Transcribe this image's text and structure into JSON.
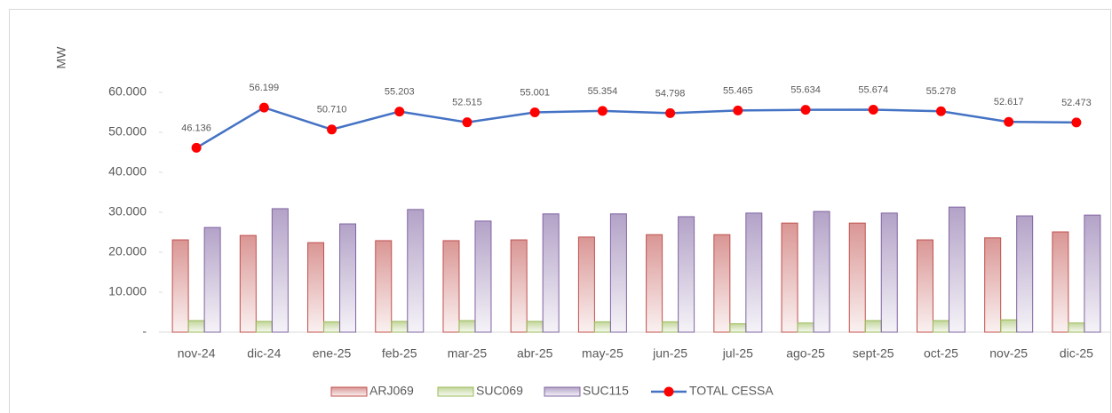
{
  "chart_data": {
    "type": "bar-line",
    "y_label": "MW",
    "categories": [
      "nov-24",
      "dic-24",
      "ene-25",
      "feb-25",
      "mar-25",
      "abr-25",
      "may-25",
      "jun-25",
      "jul-25",
      "ago-25",
      "sept-25",
      "oct-25",
      "nov-25",
      "dic-25"
    ],
    "series": [
      {
        "name": "ARJ069",
        "type": "bar",
        "color": "#c0504d",
        "values": [
          23.1,
          24.2,
          22.4,
          22.9,
          22.9,
          23.1,
          23.8,
          24.4,
          24.4,
          27.3,
          27.3,
          23.1,
          23.6,
          25.1
        ]
      },
      {
        "name": "SUC069",
        "type": "bar",
        "color": "#9bbb59",
        "values": [
          2.9,
          2.7,
          2.6,
          2.7,
          2.9,
          2.7,
          2.6,
          2.6,
          2.1,
          2.3,
          2.9,
          2.9,
          3.1,
          2.3
        ]
      },
      {
        "name": "SUC115",
        "type": "bar",
        "color": "#8064a2",
        "values": [
          26.2,
          30.9,
          27.1,
          30.7,
          27.8,
          29.6,
          29.6,
          28.9,
          29.8,
          30.2,
          29.8,
          31.3,
          29.1,
          29.3
        ]
      },
      {
        "name": "TOTAL CESSA",
        "type": "line",
        "color": "#4472c4",
        "marker_color": "#ff0000",
        "values": [
          46.136,
          56.199,
          50.71,
          55.203,
          52.515,
          55.001,
          55.354,
          54.798,
          55.465,
          55.634,
          55.674,
          55.278,
          52.617,
          52.473
        ],
        "value_labels": [
          "46.136",
          "56.199",
          "50.710",
          "55.203",
          "52.515",
          "55.001",
          "55.354",
          "54.798",
          "55.465",
          "55.634",
          "55.674",
          "55.278",
          "52.617",
          "52.473"
        ]
      }
    ],
    "ylim": [
      0,
      60
    ],
    "yticks": [
      {
        "value": 0,
        "label": "-"
      },
      {
        "value": 10,
        "label": "10.000"
      },
      {
        "value": 20,
        "label": "20.000"
      },
      {
        "value": 30,
        "label": "30.000"
      },
      {
        "value": 40,
        "label": "40.000"
      },
      {
        "value": 50,
        "label": "50.000"
      },
      {
        "value": 60,
        "label": "60.000"
      }
    ],
    "legend": "bottom"
  }
}
